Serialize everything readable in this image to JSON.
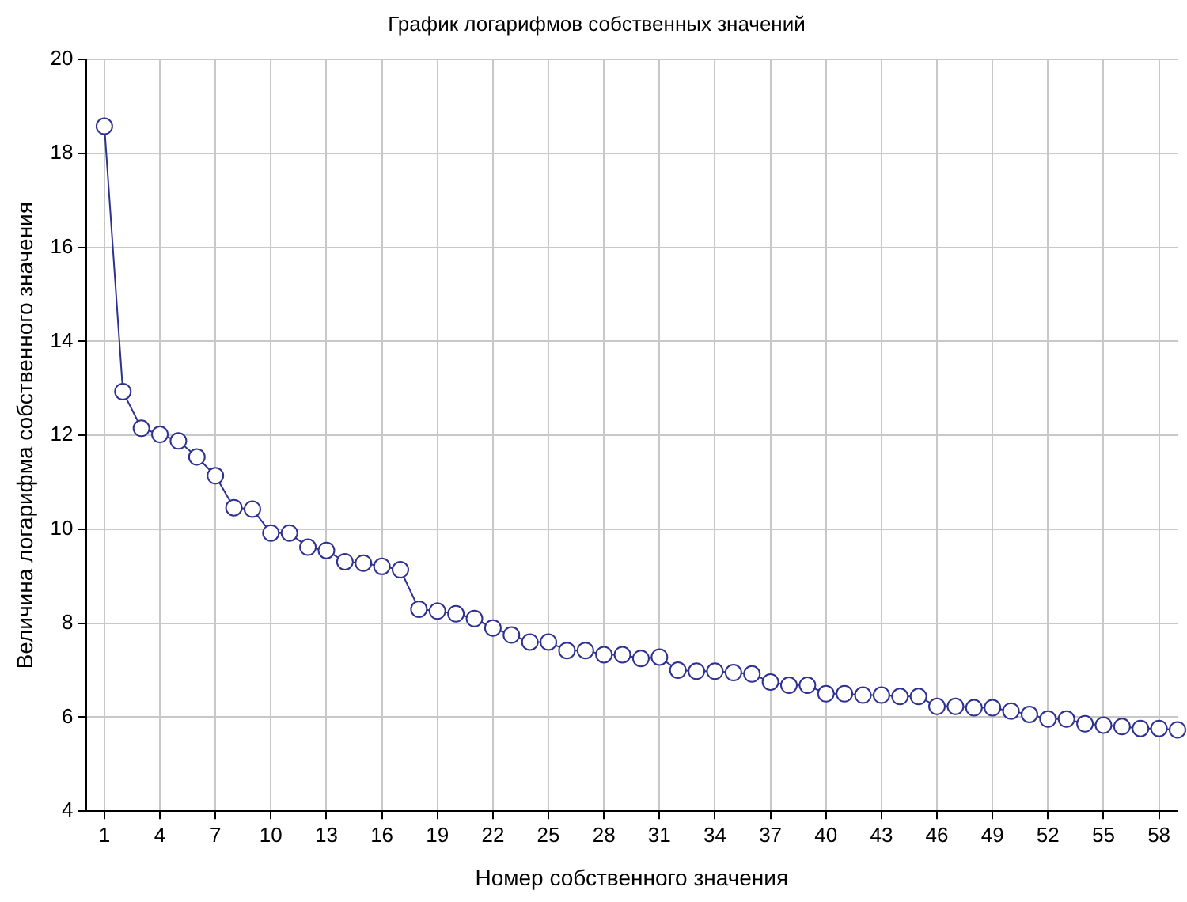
{
  "chart_data": {
    "type": "line",
    "title": "График логарифмов собственных значений",
    "xlabel": "Номер собственного значения",
    "ylabel": "Величина логарифма собственного значения",
    "x": [
      1,
      2,
      3,
      4,
      5,
      6,
      7,
      8,
      9,
      10,
      11,
      12,
      13,
      14,
      15,
      16,
      17,
      18,
      19,
      20,
      21,
      22,
      23,
      24,
      25,
      26,
      27,
      28,
      29,
      30,
      31,
      32,
      33,
      34,
      35,
      36,
      37,
      38,
      39,
      40,
      41,
      42,
      43,
      44,
      45,
      46,
      47,
      48,
      49,
      50,
      51,
      52,
      53,
      54,
      55,
      56,
      57,
      58,
      59
    ],
    "series": [
      {
        "color": "#2e3192",
        "values": [
          18.58,
          12.93,
          12.15,
          12.02,
          11.88,
          11.54,
          11.14,
          10.46,
          10.43,
          9.92,
          9.92,
          9.62,
          9.55,
          9.31,
          9.28,
          9.21,
          9.14,
          8.3,
          8.26,
          8.2,
          8.1,
          7.9,
          7.75,
          7.6,
          7.6,
          7.42,
          7.42,
          7.33,
          7.33,
          7.25,
          7.28,
          7.0,
          6.98,
          6.98,
          6.95,
          6.92,
          6.75,
          6.68,
          6.68,
          6.5,
          6.5,
          6.47,
          6.47,
          6.44,
          6.44,
          6.23,
          6.23,
          6.2,
          6.2,
          6.13,
          6.06,
          5.96,
          5.96,
          5.86,
          5.83,
          5.8,
          5.76,
          5.76,
          5.73
        ]
      }
    ],
    "xlim": [
      0,
      59
    ],
    "xticks": [
      1,
      4,
      7,
      10,
      13,
      16,
      19,
      22,
      25,
      28,
      31,
      34,
      37,
      40,
      43,
      46,
      49,
      52,
      55,
      58
    ],
    "ylim": [
      4,
      20
    ],
    "yticks": [
      4,
      6,
      8,
      10,
      12,
      14,
      16,
      18,
      20
    ],
    "grid": true,
    "legend": false,
    "marker": "circle",
    "line_style": "solid"
  }
}
